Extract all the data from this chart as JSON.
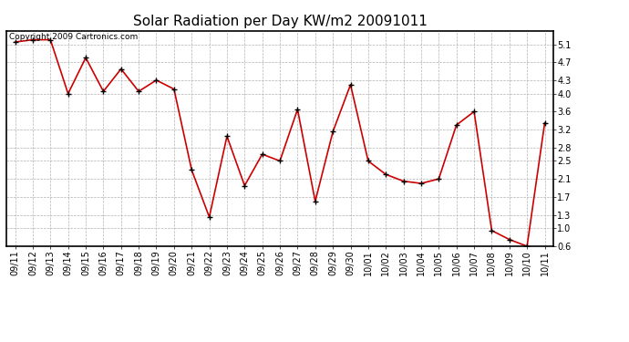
{
  "title": "Solar Radiation per Day KW/m2 20091011",
  "copyright_text": "Copyright 2009 Cartronics.com",
  "labels": [
    "09/11",
    "09/12",
    "09/13",
    "09/14",
    "09/15",
    "09/16",
    "09/17",
    "09/18",
    "09/19",
    "09/20",
    "09/21",
    "09/22",
    "09/23",
    "09/24",
    "09/25",
    "09/26",
    "09/27",
    "09/28",
    "09/29",
    "09/30",
    "10/01",
    "10/02",
    "10/03",
    "10/04",
    "10/05",
    "10/06",
    "10/07",
    "10/08",
    "10/09",
    "10/10",
    "10/11"
  ],
  "values": [
    5.15,
    5.2,
    5.2,
    4.0,
    4.8,
    4.05,
    4.55,
    4.05,
    4.3,
    4.1,
    2.3,
    1.25,
    3.05,
    1.95,
    2.65,
    2.5,
    3.65,
    1.6,
    3.15,
    4.2,
    2.5,
    2.2,
    2.05,
    2.0,
    2.1,
    3.3,
    3.6,
    0.95,
    0.75,
    0.6,
    3.35
  ],
  "line_color": "#cc0000",
  "marker_color": "#000000",
  "bg_color": "#ffffff",
  "grid_color": "#aaaaaa",
  "ylim": [
    0.6,
    5.4
  ],
  "yticks": [
    0.6,
    1.0,
    1.3,
    1.7,
    2.1,
    2.5,
    2.8,
    3.2,
    3.6,
    4.0,
    4.3,
    4.7,
    5.1
  ],
  "title_fontsize": 11,
  "tick_fontsize": 7,
  "copyright_fontsize": 6.5
}
